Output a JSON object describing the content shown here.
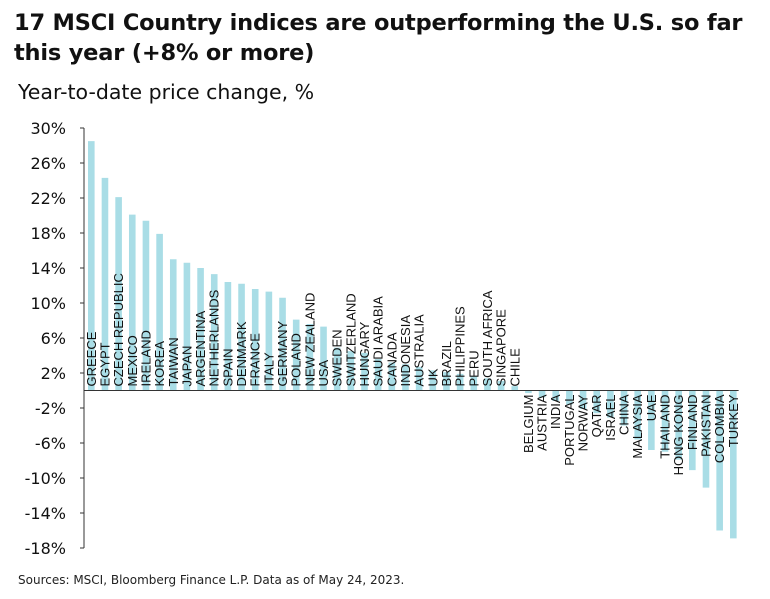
{
  "title": "17 MSCI Country indices are outperforming the U.S. so far this year (+8% or more)",
  "subtitle": "Year-to-date price change, %",
  "source": "Sources: MSCI, Bloomberg Finance L.P. Data as of May 24, 2023.",
  "colors": {
    "bar": "#a9dde6",
    "axis": "#333333",
    "text": "#111111"
  },
  "chart_data": {
    "type": "bar",
    "title": "17 MSCI Country indices are outperforming the U.S. so far this year (+8% or more)",
    "ylabel": "Year-to-date price change, %",
    "xlabel": "",
    "ylim": [
      -18,
      30
    ],
    "yticks": [
      30,
      26,
      22,
      18,
      14,
      10,
      6,
      2,
      -2,
      -6,
      -10,
      -14,
      -18
    ],
    "ytick_labels": [
      "30%",
      "26%",
      "22%",
      "18%",
      "14%",
      "10%",
      "6%",
      "2%",
      "-2%",
      "-6%",
      "-10%",
      "-14%",
      "-18%"
    ],
    "grid": false,
    "categories": [
      "GREECE",
      "EGYPT",
      "CZECH REPUBLIC",
      "MEXICO",
      "IRELAND",
      "KOREA",
      "TAIWAN",
      "JAPAN",
      "ARGENTINA",
      "NETHERLANDS",
      "SPAIN",
      "DENMARK",
      "FRANCE",
      "ITALY",
      "GERMANY",
      "POLAND",
      "NEW ZEALAND",
      "USA",
      "SWEDEN",
      "SWITZERLAND",
      "HUNGARY",
      "SAUDI ARABIA",
      "CANADA",
      "INDONESIA",
      "AUSTRALIA",
      "UK",
      "BRAZIL",
      "PHILIPPINES",
      "PERU",
      "SOUTH AFRICA",
      "SINGAPORE",
      "CHILE",
      "BELGIUM",
      "AUSTRIA",
      "INDIA",
      "PORTUGAL",
      "NORWAY",
      "QATAR",
      "ISRAEL",
      "CHINA",
      "MALAYSIA",
      "UAE",
      "THAILAND",
      "HONG KONG",
      "FINLAND",
      "PAKISTAN",
      "COLOMBIA",
      "TURKEY"
    ],
    "values": [
      28.5,
      24.3,
      22.1,
      20.1,
      19.4,
      17.9,
      15.0,
      14.6,
      14.0,
      13.3,
      12.4,
      12.2,
      11.6,
      11.3,
      10.6,
      8.1,
      7.6,
      7.3,
      4.9,
      4.5,
      4.3,
      3.6,
      3.2,
      3.0,
      2.7,
      2.3,
      2.1,
      1.9,
      1.6,
      1.4,
      1.1,
      0.5,
      -0.3,
      -0.8,
      -1.2,
      -1.6,
      -2.1,
      -2.6,
      -3.1,
      -4.0,
      -5.6,
      -6.8,
      -7.0,
      -7.9,
      -9.1,
      -11.1,
      -16.0,
      -16.9
    ]
  }
}
